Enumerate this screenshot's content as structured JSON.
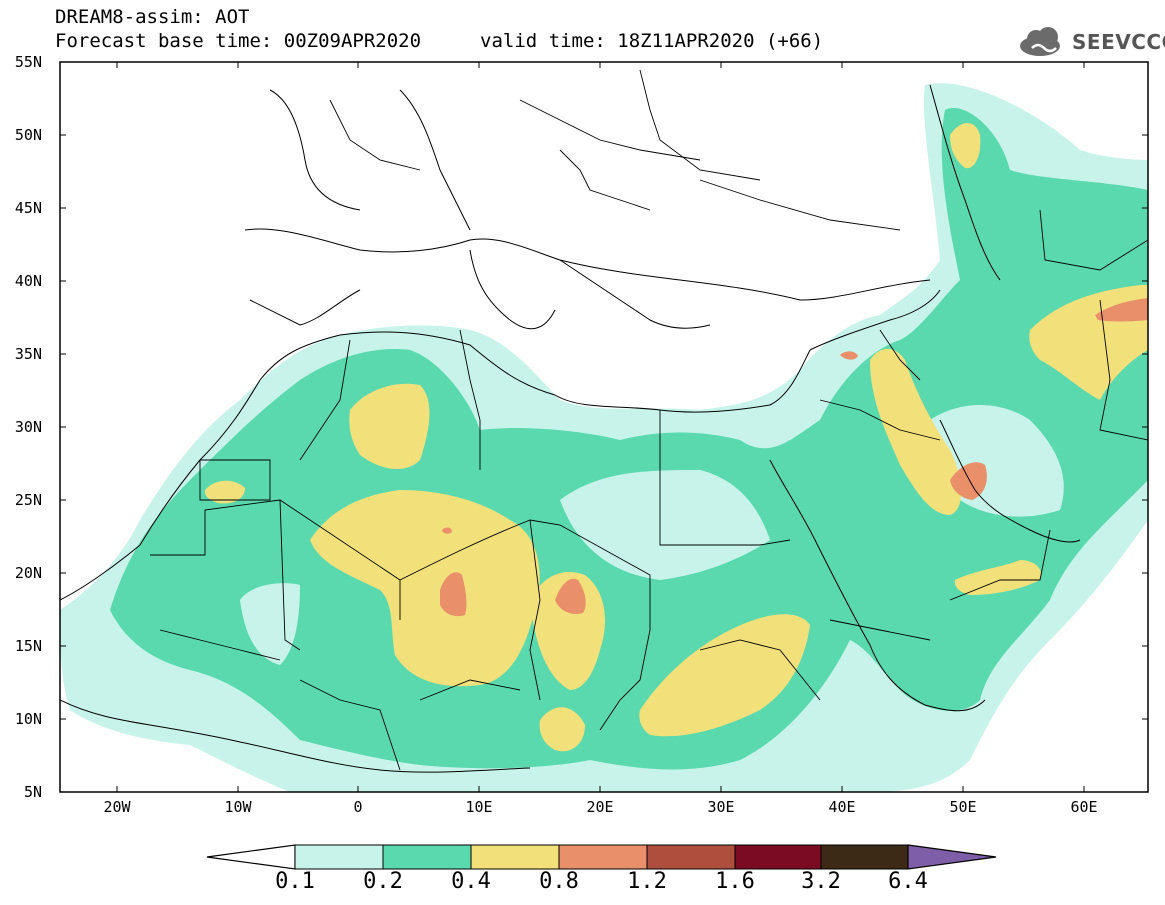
{
  "header": {
    "line1": "DREAM8-assim: AOT",
    "line2_left": "Forecast base time: 00Z09APR2020",
    "line2_right": "valid time: 18Z11APR2020 (+66)"
  },
  "logo": {
    "text": "SEEVCCC",
    "icon": "cloud-icon"
  },
  "axes": {
    "lat_labels": [
      "55N",
      "50N",
      "45N",
      "40N",
      "35N",
      "30N",
      "25N",
      "20N",
      "15N",
      "10N",
      "5N"
    ],
    "lon_labels": [
      "20W",
      "10W",
      "0",
      "10E",
      "20E",
      "30E",
      "40E",
      "50E",
      "60E"
    ],
    "lon_range": [
      -25,
      65
    ],
    "lat_range": [
      5,
      55
    ]
  },
  "colorbar": {
    "ticks": [
      "0.1",
      "0.2",
      "0.4",
      "0.8",
      "1.2",
      "1.6",
      "3.2",
      "6.4"
    ],
    "colors": [
      "#ffffff",
      "#c8f3ea",
      "#5ad9ae",
      "#f2e07a",
      "#e9906a",
      "#ae4f3e",
      "#7b0a23",
      "#3c2a17",
      "#7e5ea6"
    ]
  },
  "field": {
    "variable": "AOT",
    "levels": [
      0.1,
      0.2,
      0.4,
      0.8,
      1.2
    ]
  }
}
